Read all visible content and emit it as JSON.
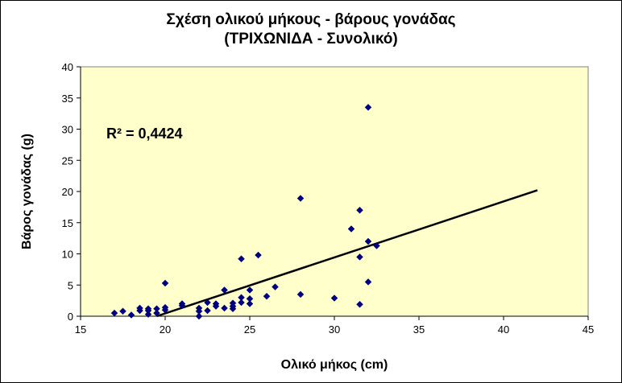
{
  "chart_data": {
    "type": "scatter",
    "title": "Σχέση ολικού  μήκους - βάρους γονάδας",
    "subtitle": "(ΤΡΙΧΩΝΙΔΑ - Συνολικό)",
    "xlabel": "Ολικό μήκος (cm)",
    "ylabel": "Βάρος γονάδας (g)",
    "xlim": [
      15,
      45
    ],
    "ylim": [
      0,
      40
    ],
    "xticks": [
      15,
      20,
      25,
      30,
      35,
      40,
      45
    ],
    "yticks": [
      0,
      5,
      10,
      15,
      20,
      25,
      30,
      35,
      40
    ],
    "grid": false,
    "plot_background": "#FFFFCC",
    "marker_color": "#000080",
    "trendline": {
      "from": [
        19.5,
        0.0
      ],
      "to": [
        42.0,
        20.2
      ],
      "color": "#000000"
    },
    "annotation": "R² = 0,4424",
    "points": [
      [
        17,
        0.5
      ],
      [
        17.5,
        0.8
      ],
      [
        18,
        0.2
      ],
      [
        18.5,
        0.9
      ],
      [
        18.5,
        1.3
      ],
      [
        19,
        0.3
      ],
      [
        19,
        0.9
      ],
      [
        19,
        1.2
      ],
      [
        19.5,
        0.5
      ],
      [
        19.5,
        1.2
      ],
      [
        20,
        1.0
      ],
      [
        20,
        1.4
      ],
      [
        20,
        5.3
      ],
      [
        21,
        1.7
      ],
      [
        21,
        2.0
      ],
      [
        22,
        0.0
      ],
      [
        22,
        0.8
      ],
      [
        22,
        1.3
      ],
      [
        22.5,
        0.9
      ],
      [
        22.5,
        2.2
      ],
      [
        23,
        1.6
      ],
      [
        23,
        2.0
      ],
      [
        23.5,
        1.3
      ],
      [
        23.5,
        4.2
      ],
      [
        24,
        1.2
      ],
      [
        24,
        1.6
      ],
      [
        24,
        2.1
      ],
      [
        24.5,
        2.2
      ],
      [
        24.5,
        3.0
      ],
      [
        24.5,
        9.2
      ],
      [
        25,
        2.0
      ],
      [
        25,
        2.8
      ],
      [
        25,
        4.2
      ],
      [
        25.5,
        9.8
      ],
      [
        26,
        3.2
      ],
      [
        26.5,
        4.7
      ],
      [
        28,
        3.5
      ],
      [
        28,
        18.9
      ],
      [
        30,
        2.9
      ],
      [
        31,
        14.0
      ],
      [
        31.5,
        1.9
      ],
      [
        31.5,
        9.5
      ],
      [
        31.5,
        17.0
      ],
      [
        32,
        5.5
      ],
      [
        32,
        12.0
      ],
      [
        32,
        33.5
      ],
      [
        32.5,
        11.3
      ]
    ]
  }
}
